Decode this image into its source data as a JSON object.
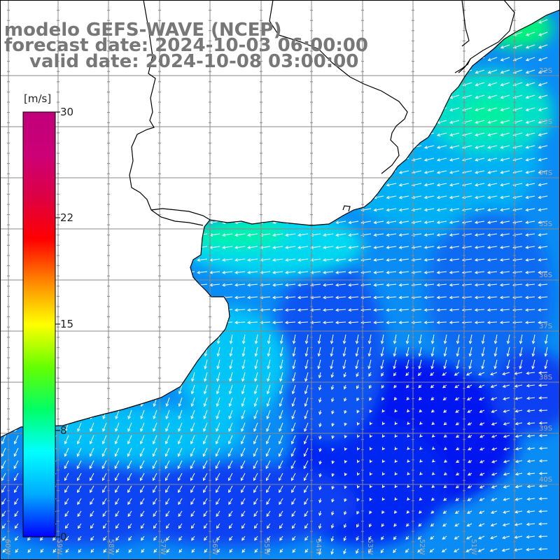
{
  "title": {
    "line1": "modelo GEFS-WAVE (NCEP)",
    "line2": "forecast date: 2024-10-03 06:00:00",
    "line3": "valid date: 2024-10-08 03:00:00"
  },
  "colorbar": {
    "unit": "[m/s]",
    "ticks": [
      "30",
      "22",
      "15",
      "8",
      "0"
    ],
    "colors": [
      "#0000ff",
      "#00aaff",
      "#00ffff",
      "#00ff66",
      "#66ff00",
      "#ffff00",
      "#ff8800",
      "#ff0000",
      "#dd0044",
      "#cc0077",
      "#c0007a"
    ]
  },
  "grid": {
    "lat_labels": [
      "32S",
      "33S",
      "34S",
      "35S",
      "36S",
      "37S",
      "38S",
      "39S",
      "40S"
    ],
    "lon_labels": [
      "60W",
      "59W",
      "58W",
      "57W",
      "56W",
      "55W",
      "54W",
      "53W",
      "52W",
      "51W"
    ]
  },
  "colors": {
    "title": "#777777",
    "grid": "#888888",
    "land": "#ffffff",
    "coast": "#000000",
    "arrow": "#ffffff"
  }
}
